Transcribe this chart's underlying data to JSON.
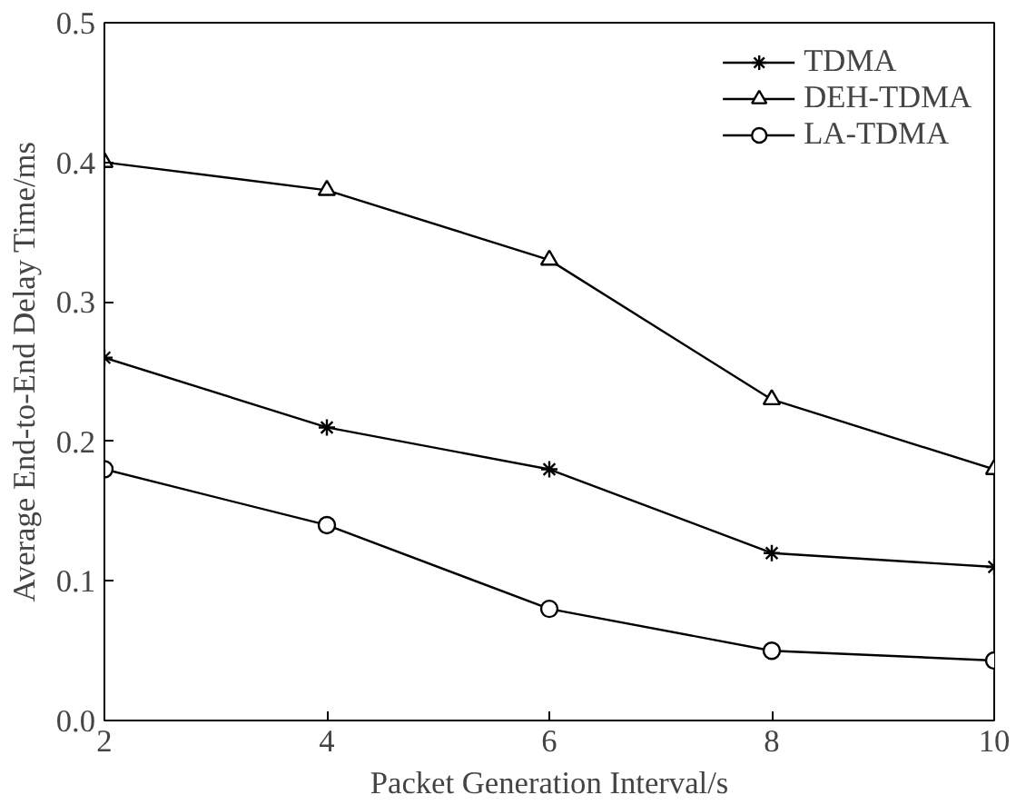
{
  "chart_data": {
    "type": "line",
    "xlabel": "Packet Generation Interval/s",
    "ylabel": "Average End-to-End Delay Time/ms",
    "x": [
      2,
      4,
      6,
      8,
      10
    ],
    "series": [
      {
        "name": "TDMA",
        "color": "#000000",
        "marker": "cross",
        "values": [
          0.26,
          0.21,
          0.18,
          0.12,
          0.11
        ]
      },
      {
        "name": "DEH-TDMA",
        "color": "#000000",
        "marker": "triangle",
        "values": [
          0.4,
          0.38,
          0.33,
          0.23,
          0.18
        ]
      },
      {
        "name": "LA-TDMA",
        "color": "#000000",
        "marker": "circle",
        "values": [
          0.18,
          0.14,
          0.08,
          0.05,
          0.043
        ]
      }
    ],
    "xlim": [
      2,
      10
    ],
    "xticks": [
      2,
      4,
      6,
      8,
      10
    ],
    "ylim": [
      0,
      0.5
    ],
    "yticks": [
      {
        "value": 0,
        "label": "0.0"
      },
      0.1,
      0.2,
      0.3,
      0.4,
      0.5
    ],
    "grid": false,
    "legend": "top right",
    "line_style": "solid"
  }
}
